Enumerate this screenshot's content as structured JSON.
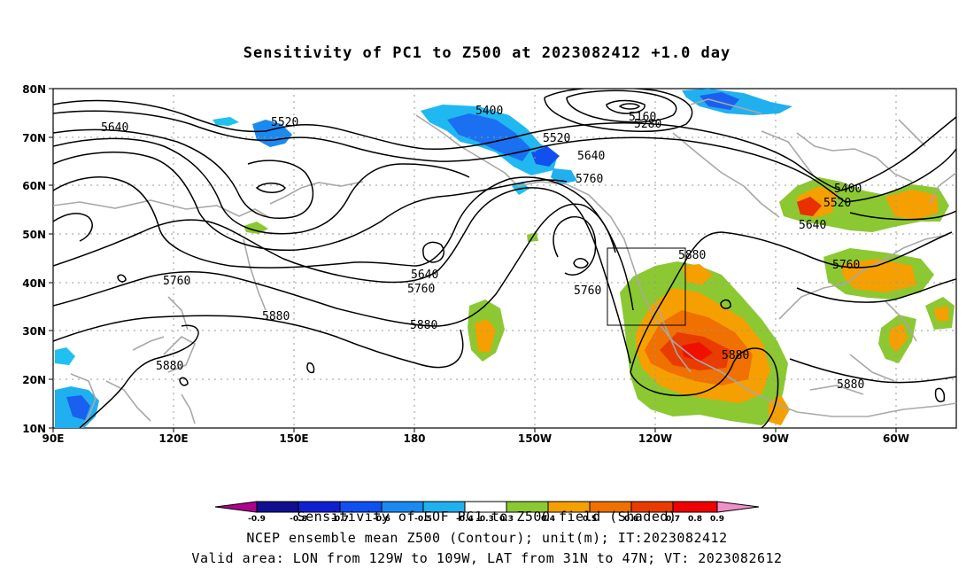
{
  "title": "Sensitivity of PC1 to Z500 at 2023082412 +1.0 day",
  "footer": {
    "line1": "Sensitivity of EOF PC1 to Z500 field (Shaded)",
    "line2": "NCEP ensemble mean Z500 (Contour); unit(m); IT:2023082412",
    "line3": "Valid area: LON from 129W to 109W, LAT from 31N to 47N; VT: 2023082612"
  },
  "axes": {
    "lat_labels": [
      "80N",
      "70N",
      "60N",
      "50N",
      "40N",
      "30N",
      "20N",
      "10N"
    ],
    "lon_labels": [
      "90E",
      "120E",
      "150E",
      "180",
      "150W",
      "120W",
      "90W",
      "60W"
    ]
  },
  "contour_labels": [
    "5640",
    "5520",
    "5400",
    "5160",
    "5280",
    "5520",
    "5640",
    "5760",
    "5400",
    "5520",
    "5640",
    "5760",
    "5880",
    "5760",
    "5640",
    "5760",
    "5760",
    "5880",
    "5880",
    "5880",
    "5880",
    "5880"
  ],
  "colorbar": {
    "labels": [
      "-0.9",
      "-0.8",
      "-0.7",
      "-0.6",
      "-0.5",
      "-0.4",
      "-0.3",
      "0.3",
      "0.4",
      "0.5",
      "0.6",
      "0.7",
      "0.8",
      "0.9"
    ],
    "colors": [
      "#b00090",
      "#101090",
      "#1020d0",
      "#1050f0",
      "#1a8af0",
      "#20b0f0",
      "#1ad0f0",
      "#ffffff",
      "#8cc832",
      "#f5a000",
      "#f08000",
      "#f05a00",
      "#e82800",
      "#f00000",
      "#f090c8"
    ]
  }
}
